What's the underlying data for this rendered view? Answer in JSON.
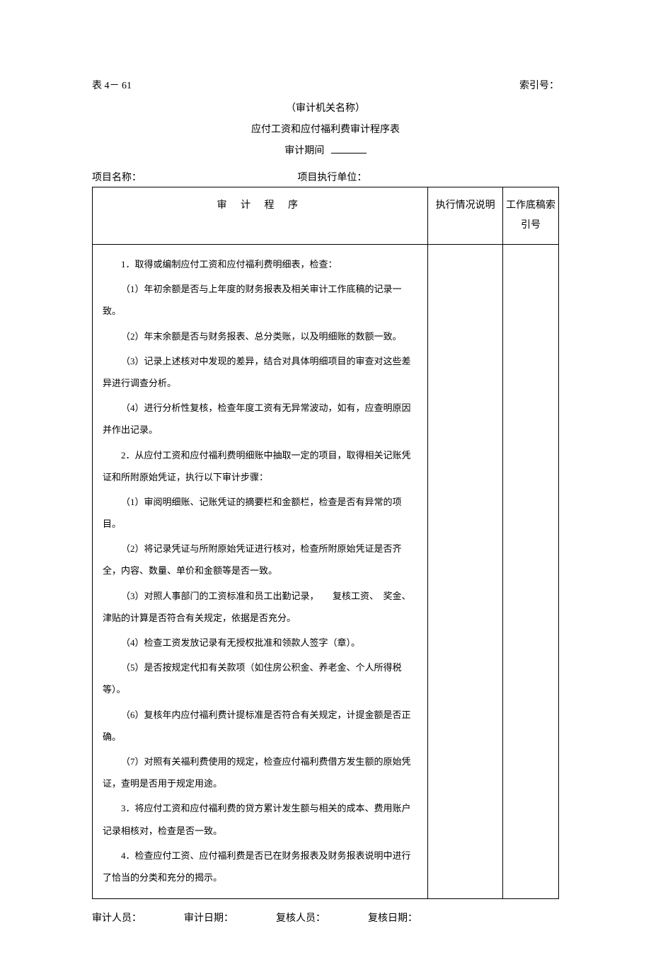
{
  "header": {
    "table_number": "表 4－ 61",
    "index_label": "索引号：",
    "org_name": "（审计机关名称）",
    "title": "应付工资和应付福利费审计程序表",
    "audit_period_label": "审计期间"
  },
  "project": {
    "name_label": "项目名称：",
    "unit_label": "项目执行单位："
  },
  "table": {
    "columns": {
      "procedure": "审 计 程 序",
      "execution": "执行情况说明",
      "workpaper": "工作底稿索引号"
    },
    "col_widths": {
      "procedure": "72%",
      "execution": "16%",
      "workpaper": "12%"
    },
    "paragraphs": [
      "1．取得或编制应付工资和应付福利费明细表，检查：",
      "（1）年初余额是否与上年度的财务报表及相关审计工作底稿的记录一致。",
      "（2）年末余额是否与财务报表、总分类账，以及明细账的数额一致。",
      "（3）记录上述核对中发现的差异，结合对具体明细项目的审查对这些差异进行调查分析。",
      "（4）进行分析性复核，检查年度工资有无异常波动，如有，应查明原因并作出记录。",
      "2．从应付工资和应付福利费明细账中抽取一定的项目，取得相关记账凭证和所附原始凭证，执行以下审计步骤：",
      "（1）审阅明细账、记账凭证的摘要栏和金额栏，检查是否有异常的项目。",
      "（2）将记录凭证与所附原始凭证进行核对，检查所附原始凭证是否齐全，内容、数量、单价和金额等是否一致。",
      "（3）对照人事部门的工资标准和员工出勤记录，　　复核工资、　奖金、津贴的计算是否符合有关规定，依据是否充分。",
      "（4）检查工资发放记录有无授权批准和领款人签字（章）。",
      "（5）是否按规定代扣有关款项（如住房公积金、养老金、个人所得税等）。",
      "（6）复核年内应付福利费计提标准是否符合有关规定，计提金额是否正确。",
      "（7）对照有关福利费使用的规定，检查应付福利费借方发生额的原始凭证，查明是否用于规定用途。",
      "3．将应付工资和应付福利费的贷方累计发生额与相关的成本、费用账户记录相核对，检查是否一致。",
      "4．检查应付工资、应付福利费是否已在财务报表及财务报表说明中进行了恰当的分类和充分的揭示。"
    ]
  },
  "footer": {
    "auditor": "审计人员：",
    "audit_date": "审计日期：",
    "reviewer": "复核人员：",
    "review_date": "复核日期："
  }
}
